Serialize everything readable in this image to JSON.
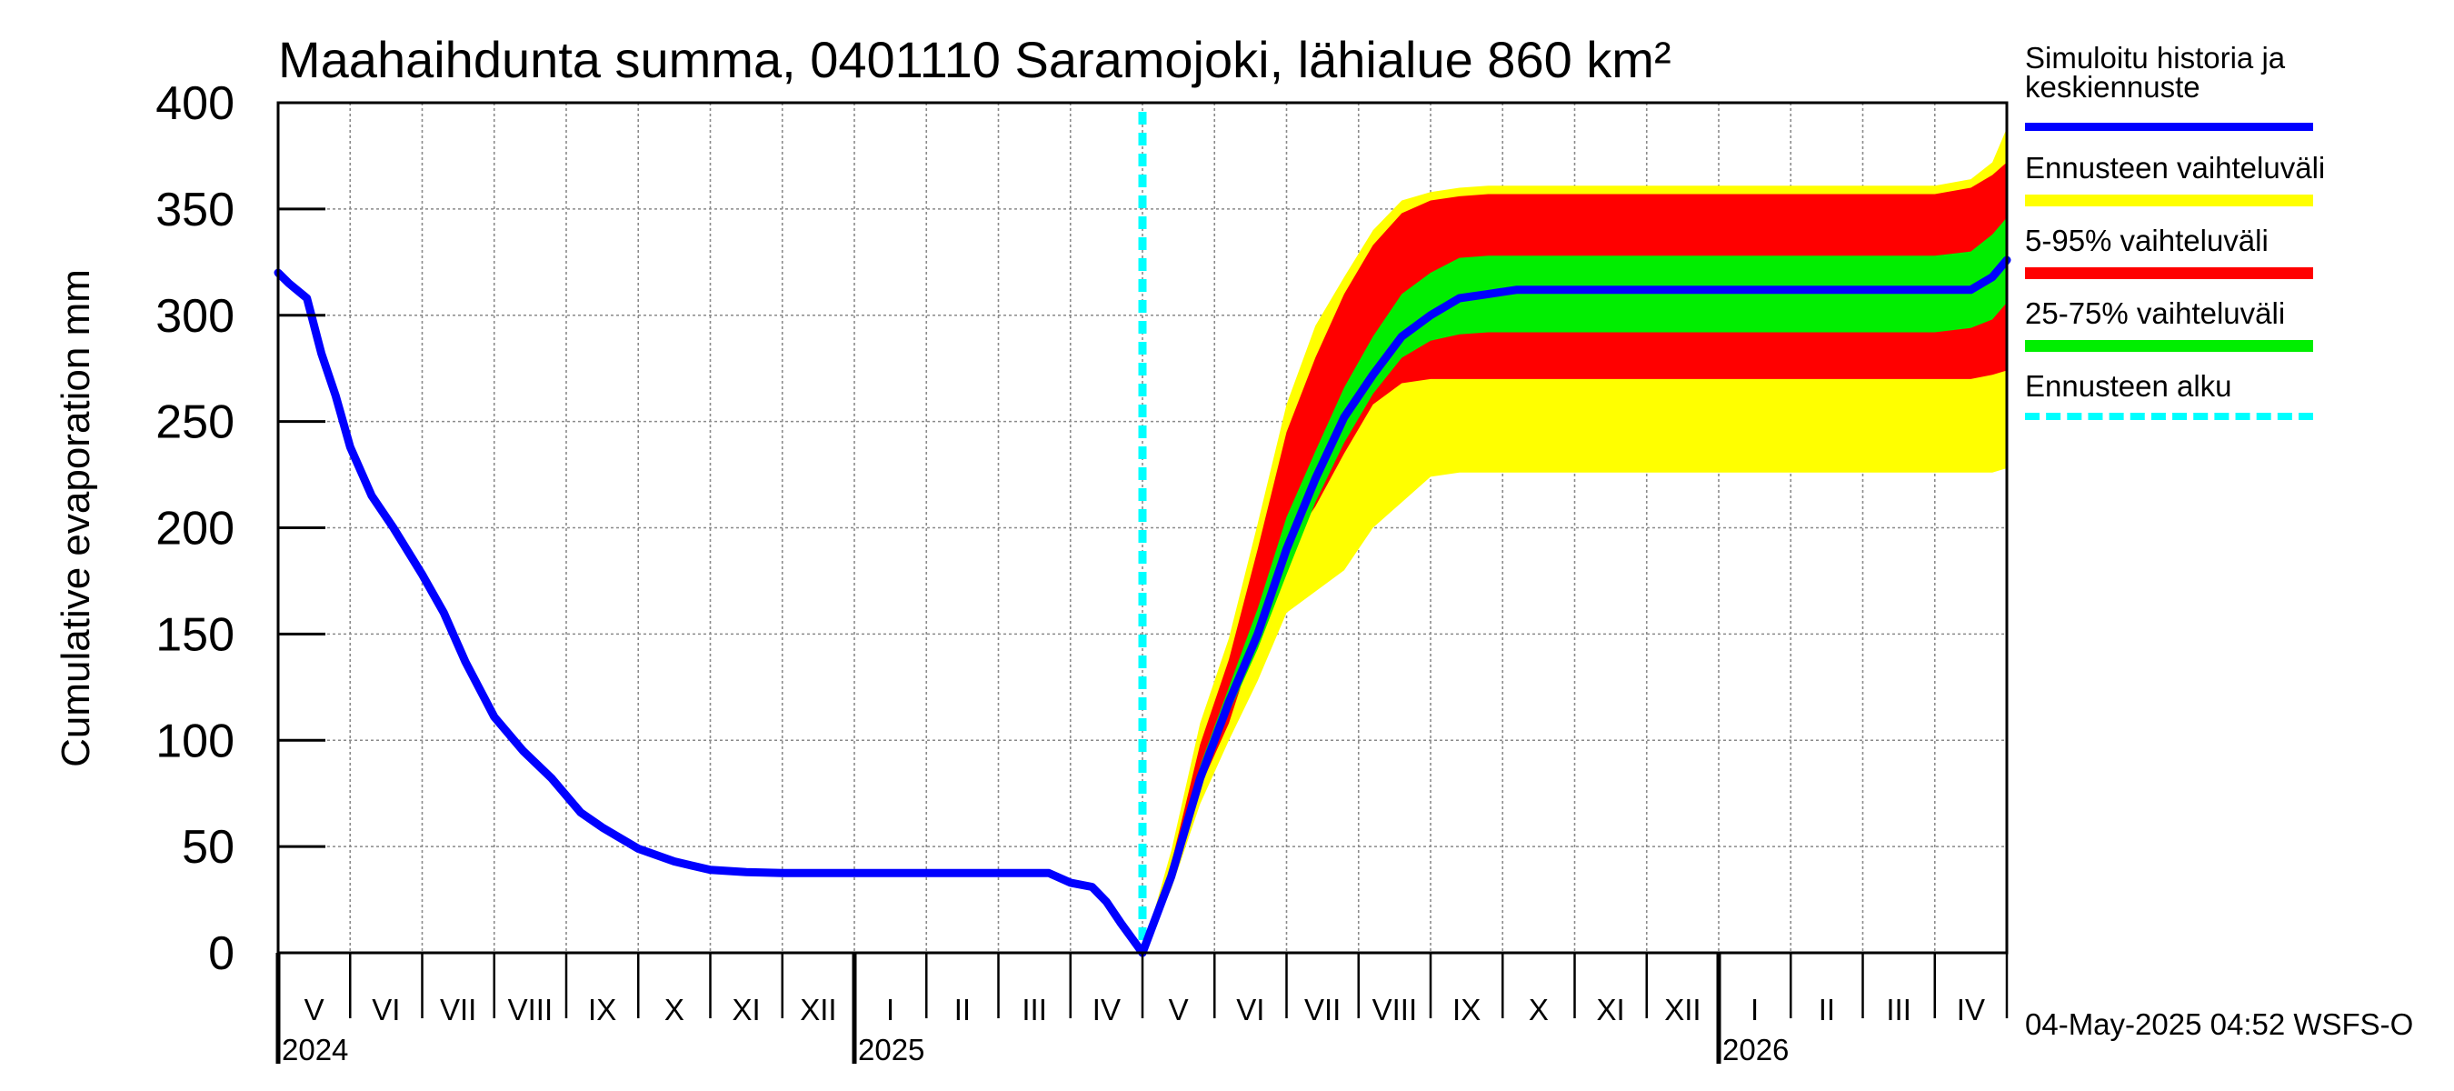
{
  "chart_data": {
    "type": "area",
    "title": "Maahaihdunta summa, 0401110 Saramojoki, lähialue 860 km²",
    "ylabel": "Cumulative evaporation   mm",
    "xlabel": "",
    "ylim": [
      0,
      400
    ],
    "yticks": [
      "0",
      "50",
      "100",
      "150",
      "200",
      "250",
      "300",
      "350",
      "400"
    ],
    "grid": true,
    "legend_position": "right",
    "month_labels": [
      "V",
      "VI",
      "VII",
      "VIII",
      "IX",
      "X",
      "XI",
      "XII",
      "I",
      "II",
      "III",
      "IV",
      "V",
      "VI",
      "VII",
      "VIII",
      "IX",
      "X",
      "XI",
      "XII",
      "I",
      "II",
      "III",
      "IV"
    ],
    "year_labels": [
      {
        "label": "2024",
        "month_index": 0
      },
      {
        "label": "2025",
        "month_index": 8
      },
      {
        "label": "2026",
        "month_index": 20
      }
    ],
    "forecast_start_month": 12.0,
    "history": {
      "x": [
        0,
        0.15,
        0.4,
        0.6,
        0.8,
        1.0,
        1.3,
        1.6,
        2.0,
        2.3,
        2.6,
        3.0,
        3.4,
        3.8,
        4.2,
        4.5,
        5.0,
        5.5,
        6.0,
        6.5,
        7.0,
        8.0,
        9.0,
        10.0,
        10.7,
        11.0,
        11.3,
        11.5,
        11.7,
        11.85,
        12.0
      ],
      "y": [
        320,
        315,
        308,
        282,
        262,
        238,
        215,
        200,
        178,
        160,
        137,
        111,
        95,
        82,
        66,
        59,
        49,
        43,
        39,
        38,
        37.5,
        37.5,
        37.5,
        37.5,
        37.5,
        33,
        31,
        24,
        14,
        7,
        0
      ]
    },
    "median": {
      "x": [
        12.0,
        12.4,
        12.8,
        13.2,
        13.6,
        14.0,
        14.4,
        14.8,
        15.2,
        15.6,
        16.0,
        16.4,
        16.8,
        17.2,
        17.6,
        18.0,
        18.5,
        19.0,
        20.0,
        21.0,
        22.0,
        23.0,
        23.5,
        23.8,
        24.0
      ],
      "y": [
        0,
        36,
        82,
        118,
        150,
        190,
        223,
        252,
        272,
        290,
        300,
        308,
        310,
        312,
        312,
        312,
        312,
        312,
        312,
        312,
        312,
        312,
        312,
        318,
        326
      ]
    },
    "x": [
      12.0,
      12.4,
      12.8,
      13.2,
      13.6,
      14.0,
      14.4,
      14.8,
      15.2,
      15.6,
      16.0,
      16.4,
      16.8,
      17.2,
      17.6,
      18.0,
      18.5,
      19.0,
      20.0,
      21.0,
      22.0,
      23.0,
      23.5,
      23.8,
      24.0
    ],
    "series": [
      {
        "name": "Ennusteen vaihteluväli",
        "color": "#ffff00",
        "lower": [
          0,
          30,
          70,
          100,
          128,
          160,
          170,
          180,
          200,
          212,
          224,
          226,
          226,
          226,
          226,
          226,
          226,
          226,
          226,
          226,
          226,
          226,
          226,
          226,
          228
        ],
        "upper": [
          0,
          48,
          108,
          148,
          202,
          258,
          295,
          318,
          340,
          354,
          358,
          360,
          361,
          361,
          361,
          361,
          361,
          361,
          361,
          361,
          361,
          361,
          364,
          372,
          388
        ]
      },
      {
        "name": "5-95% vaihteluväli",
        "color": "#ff0000",
        "lower": [
          0,
          33,
          78,
          108,
          150,
          190,
          210,
          235,
          258,
          268,
          270,
          270,
          270,
          270,
          270,
          270,
          270,
          270,
          270,
          270,
          270,
          270,
          270,
          272,
          274
        ],
        "upper": [
          0,
          42,
          98,
          138,
          190,
          245,
          280,
          310,
          333,
          348,
          354,
          356,
          357,
          357,
          357,
          357,
          357,
          357,
          357,
          357,
          357,
          357,
          360,
          366,
          372
        ]
      },
      {
        "name": "25-75% vaihteluväli",
        "color": "#00ee00",
        "lower": [
          0,
          35,
          80,
          113,
          143,
          178,
          212,
          240,
          263,
          280,
          288,
          291,
          292,
          292,
          292,
          292,
          292,
          292,
          292,
          292,
          292,
          292,
          294,
          298,
          306
        ],
        "upper": [
          0,
          38,
          88,
          125,
          162,
          205,
          236,
          266,
          290,
          310,
          320,
          327,
          328,
          328,
          328,
          328,
          328,
          328,
          328,
          328,
          328,
          328,
          330,
          338,
          346
        ]
      }
    ],
    "legend": [
      {
        "label": "Simuloitu historia ja\nkeskiennuste",
        "color": "#0000ff",
        "style": "solid"
      },
      {
        "label": "Ennusteen vaihteluväli",
        "color": "#ffff00",
        "style": "solid"
      },
      {
        "label": "5-95% vaihteluväli",
        "color": "#ff0000",
        "style": "solid"
      },
      {
        "label": "25-75% vaihteluväli",
        "color": "#00ee00",
        "style": "solid"
      },
      {
        "label": "Ennusteen alku",
        "color": "#00ffff",
        "style": "dashed"
      }
    ],
    "history_color": "#0000ff",
    "forecast_start_color": "#00ffff",
    "timestamp": "04-May-2025 04:52 WSFS-O"
  }
}
